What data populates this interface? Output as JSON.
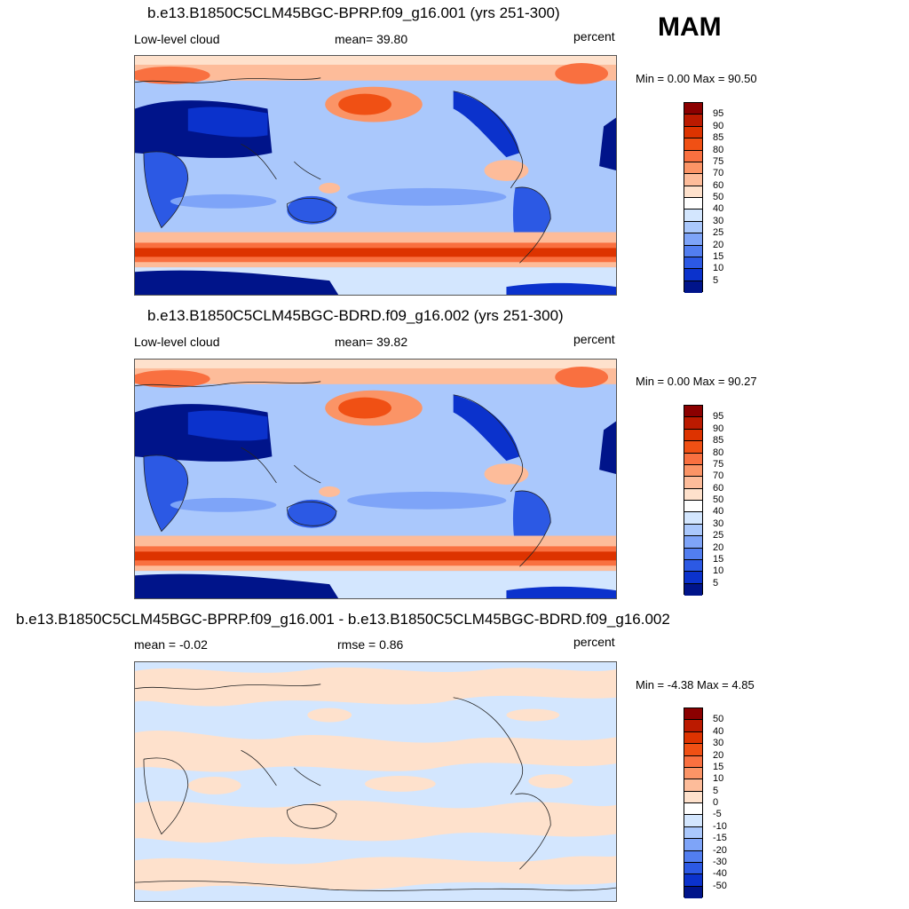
{
  "season": "MAM",
  "panels": [
    {
      "title": "b.e13.B1850C5CLM45BGC-BPRP.f09_g16.001 (yrs 251-300)",
      "left_label": "Low-level cloud",
      "center_label": "mean=  39.80",
      "right_label": "percent",
      "minmax": "Min =    0.00 Max =  90.50",
      "colorbar_labels": [
        "95",
        "90",
        "85",
        "80",
        "75",
        "70",
        "60",
        "50",
        "40",
        "30",
        "25",
        "20",
        "15",
        "10",
        "5"
      ],
      "colors": [
        "#8b0000",
        "#bb1a00",
        "#dd3300",
        "#f05014",
        "#f97040",
        "#fb9466",
        "#fdbc9a",
        "#fee1cc",
        "#ffffff",
        "#d3e6fe",
        "#aac8fc",
        "#7ea4f8",
        "#527ef0",
        "#2c59e4",
        "#0b32cc",
        "#00148a"
      ]
    },
    {
      "title": "b.e13.B1850C5CLM45BGC-BDRD.f09_g16.002 (yrs 251-300)",
      "left_label": "Low-level cloud",
      "center_label": "mean=  39.82",
      "right_label": "percent",
      "minmax": "Min =    0.00 Max =  90.27",
      "colorbar_labels": [
        "95",
        "90",
        "85",
        "80",
        "75",
        "70",
        "60",
        "50",
        "40",
        "30",
        "25",
        "20",
        "15",
        "10",
        "5"
      ],
      "colors": [
        "#8b0000",
        "#bb1a00",
        "#dd3300",
        "#f05014",
        "#f97040",
        "#fb9466",
        "#fdbc9a",
        "#fee1cc",
        "#ffffff",
        "#d3e6fe",
        "#aac8fc",
        "#7ea4f8",
        "#527ef0",
        "#2c59e4",
        "#0b32cc",
        "#00148a"
      ]
    },
    {
      "title": "b.e13.B1850C5CLM45BGC-BPRP.f09_g16.001 - b.e13.B1850C5CLM45BGC-BDRD.f09_g16.002",
      "left_label": "mean =  -0.02",
      "center_label": "rmse =   0.86",
      "right_label": "percent",
      "minmax": "Min =  -4.38 Max =   4.85",
      "colorbar_labels": [
        "50",
        "40",
        "30",
        "20",
        "15",
        "10",
        "5",
        "0",
        "-5",
        "-10",
        "-15",
        "-20",
        "-30",
        "-40",
        "-50"
      ],
      "colors": [
        "#8b0000",
        "#bb1a00",
        "#dd3300",
        "#f05014",
        "#f97040",
        "#fb9466",
        "#fdbc9a",
        "#fee1cc",
        "#ffffff",
        "#d3e6fe",
        "#aac8fc",
        "#7ea4f8",
        "#527ef0",
        "#2c59e4",
        "#0b32cc",
        "#00148a"
      ]
    }
  ]
}
